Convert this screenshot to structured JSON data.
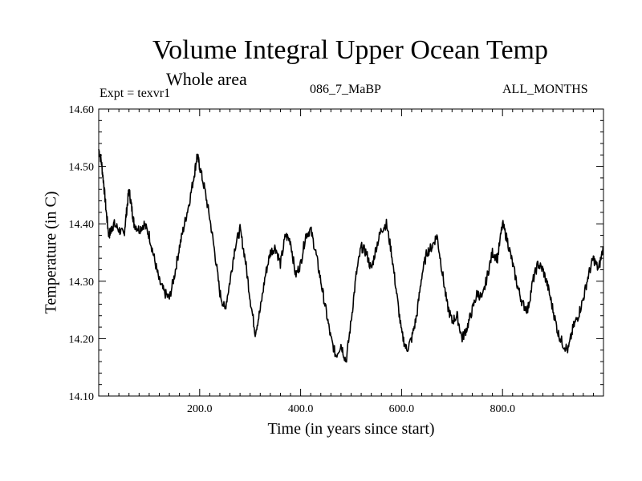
{
  "chart_data": {
    "type": "line",
    "title": "Volume Integral Upper Ocean Temp",
    "subtitle": "Whole area",
    "experiment_label": "Expt = texvr1",
    "run_label": "086_7_MaBP",
    "months_label": "ALL_MONTHS",
    "xlabel": "Time (in years since start)",
    "ylabel": "Temperature (in C)",
    "xlim": [
      0,
      1000
    ],
    "ylim": [
      14.1,
      14.6
    ],
    "xticks": [
      200,
      400,
      600,
      800
    ],
    "xtick_labels": [
      "200.0",
      "400.0",
      "600.0",
      "800.0"
    ],
    "yticks": [
      14.1,
      14.2,
      14.3,
      14.4,
      14.5,
      14.6
    ],
    "ytick_labels": [
      "14.10",
      "14.20",
      "14.30",
      "14.40",
      "14.50",
      "14.60"
    ],
    "grid": false,
    "series": [
      {
        "name": "Volume integral upper ocean temperature",
        "x": [
          0,
          5,
          10,
          15,
          20,
          25,
          30,
          40,
          50,
          55,
          60,
          65,
          70,
          80,
          90,
          100,
          110,
          120,
          130,
          140,
          150,
          160,
          170,
          180,
          190,
          195,
          200,
          210,
          220,
          230,
          240,
          250,
          260,
          270,
          280,
          290,
          300,
          310,
          320,
          330,
          340,
          350,
          360,
          370,
          380,
          390,
          400,
          410,
          420,
          430,
          440,
          450,
          460,
          470,
          480,
          490,
          500,
          510,
          520,
          530,
          540,
          550,
          560,
          570,
          580,
          590,
          600,
          610,
          620,
          630,
          640,
          650,
          660,
          670,
          680,
          690,
          700,
          710,
          720,
          730,
          740,
          750,
          760,
          770,
          780,
          790,
          800,
          810,
          820,
          830,
          840,
          850,
          860,
          870,
          880,
          890,
          900,
          910,
          920,
          930,
          940,
          950,
          960,
          970,
          980,
          990,
          1000
        ],
        "values": [
          14.53,
          14.51,
          14.47,
          14.42,
          14.38,
          14.39,
          14.4,
          14.39,
          14.38,
          14.42,
          14.46,
          14.43,
          14.4,
          14.39,
          14.4,
          14.38,
          14.34,
          14.3,
          14.28,
          14.27,
          14.31,
          14.36,
          14.4,
          14.44,
          14.49,
          14.52,
          14.5,
          14.46,
          14.41,
          14.35,
          14.28,
          14.25,
          14.3,
          14.36,
          14.39,
          14.34,
          14.27,
          14.21,
          14.25,
          14.31,
          14.35,
          14.36,
          14.33,
          14.38,
          14.37,
          14.31,
          14.33,
          14.38,
          14.39,
          14.35,
          14.3,
          14.25,
          14.2,
          14.17,
          14.19,
          14.16,
          14.23,
          14.31,
          14.36,
          14.35,
          14.32,
          14.36,
          14.39,
          14.4,
          14.35,
          14.28,
          14.21,
          14.18,
          14.2,
          14.24,
          14.31,
          14.35,
          14.36,
          14.38,
          14.32,
          14.26,
          14.23,
          14.24,
          14.2,
          14.22,
          14.25,
          14.28,
          14.27,
          14.31,
          14.35,
          14.34,
          14.4,
          14.37,
          14.33,
          14.29,
          14.26,
          14.25,
          14.3,
          14.33,
          14.32,
          14.29,
          14.25,
          14.21,
          14.19,
          14.18,
          14.22,
          14.24,
          14.27,
          14.31,
          14.34,
          14.32,
          14.36
        ]
      }
    ]
  }
}
